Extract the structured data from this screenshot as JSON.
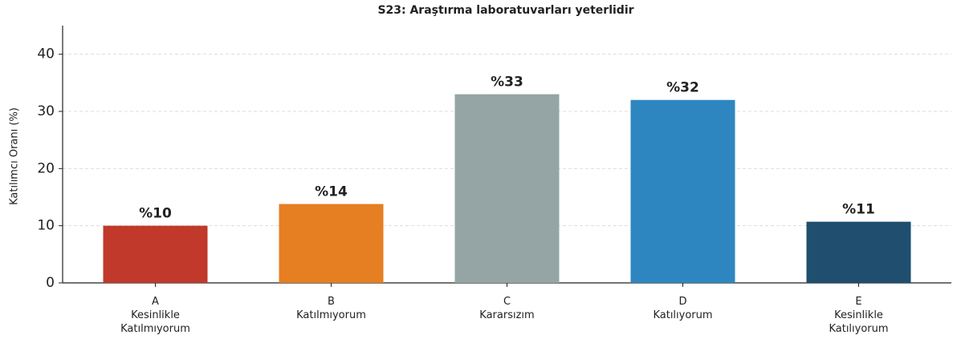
{
  "chart_data": {
    "type": "bar",
    "title": "S23: Araştırma laboratuvarları yeterlidir",
    "ylabel": "Katılımcı Oranı (%)",
    "categories": [
      "A\nKesinlikle\nKatılmıyorum",
      "B\nKatılmıyorum",
      "C\nKararsızım",
      "D\nKatılıyorum",
      "E\nKesinlikle\nKatılıyorum"
    ],
    "values": [
      10,
      13.8,
      33,
      32,
      10.7
    ],
    "value_labels": [
      "%10",
      "%14",
      "%33",
      "%32",
      "%11"
    ],
    "colors": [
      "#c0392b",
      "#e67e22",
      "#95a5a6",
      "#2e86c1",
      "#1f4e6f"
    ],
    "ylim": [
      0,
      45
    ],
    "yticks": [
      0,
      10,
      20,
      30,
      40
    ],
    "grid": true
  }
}
